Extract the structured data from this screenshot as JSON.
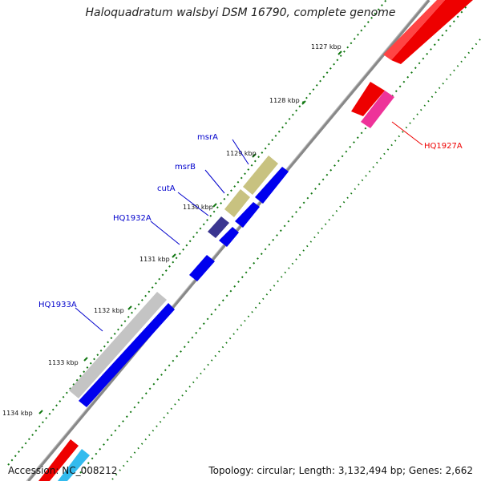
{
  "title": "Haloquadratum walsbyi DSM 16790, complete genome",
  "accession_text": "Accession: NC_008212",
  "summary_text": "Topology: circular; Length: 3,132,494 bp; Genes: 2,662",
  "ticks": [
    "1127 kbp",
    "1128 kbp",
    "1129 kbp",
    "1130 kbp",
    "1131 kbp",
    "1132 kbp",
    "1133 kbp",
    "1134 kbp"
  ],
  "gene_labels": [
    {
      "name": "msrA",
      "color": "#0000cc"
    },
    {
      "name": "msrB",
      "color": "#0000cc"
    },
    {
      "name": "cutA",
      "color": "#0000cc"
    },
    {
      "name": "HQ1932A",
      "color": "#0000cc"
    },
    {
      "name": "HQ1933A",
      "color": "#0000cc"
    },
    {
      "name": "HQ1927A",
      "color": "#ee0000"
    }
  ],
  "colors": {
    "backbone": "#888888",
    "forward_cds": "#ee0000",
    "reverse_cds": "#0000ee",
    "olive_feature": "#c8c280",
    "purple_feature": "#3a3590",
    "gray_feature": "#c4c4c4",
    "magenta_feature": "#ee3399",
    "cyan_feature": "#33bbee",
    "tick_mark": "#117711"
  }
}
